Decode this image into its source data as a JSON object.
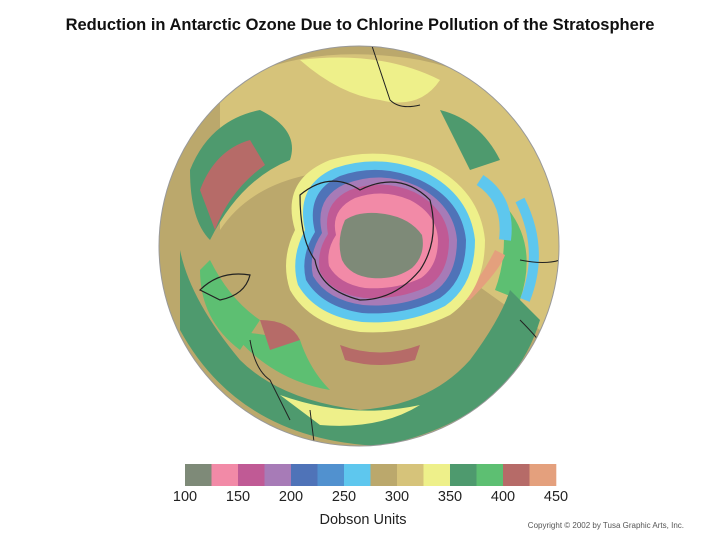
{
  "title": "Reduction in Antarctic Ozone Due to Chlorine Pollution of the Stratosphere",
  "legend": {
    "label": "Dobson Units",
    "colors": [
      "#7e8a78",
      "#f28aa7",
      "#c05a95",
      "#a77bb7",
      "#4f73b8",
      "#5191cf",
      "#5ec7ee",
      "#bba86c",
      "#d6c37a",
      "#eef08a",
      "#4e9a6e",
      "#5dbf72",
      "#b66b68",
      "#e4a07d"
    ],
    "ticks": [
      "100",
      "150",
      "200",
      "250",
      "300",
      "350",
      "400",
      "450"
    ]
  },
  "copyright": "Copyright © 2002 by Tusa Graphic Arts, Inc."
}
